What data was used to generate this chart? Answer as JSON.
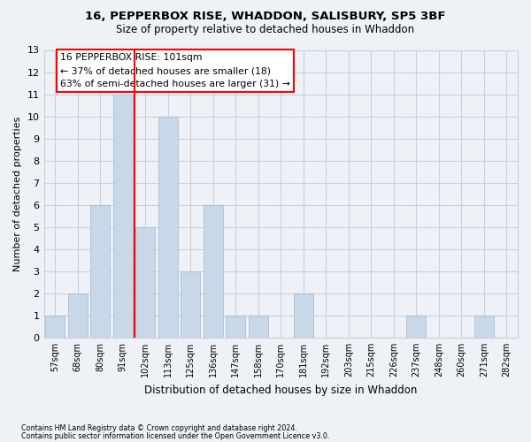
{
  "title_line1": "16, PEPPERBOX RISE, WHADDON, SALISBURY, SP5 3BF",
  "title_line2": "Size of property relative to detached houses in Whaddon",
  "xlabel": "Distribution of detached houses by size in Whaddon",
  "ylabel": "Number of detached properties",
  "footnote1": "Contains HM Land Registry data © Crown copyright and database right 2024.",
  "footnote2": "Contains public sector information licensed under the Open Government Licence v3.0.",
  "bins": [
    "57sqm",
    "68sqm",
    "80sqm",
    "91sqm",
    "102sqm",
    "113sqm",
    "125sqm",
    "136sqm",
    "147sqm",
    "158sqm",
    "170sqm",
    "181sqm",
    "192sqm",
    "203sqm",
    "215sqm",
    "226sqm",
    "237sqm",
    "248sqm",
    "260sqm",
    "271sqm",
    "282sqm"
  ],
  "values": [
    1,
    2,
    6,
    11,
    5,
    10,
    3,
    6,
    1,
    1,
    0,
    2,
    0,
    0,
    0,
    0,
    1,
    0,
    0,
    1,
    0
  ],
  "bar_color": "#c8d8e8",
  "bar_edge_color": "#a0b8d0",
  "vline_pos": 3.5,
  "vline_color": "red",
  "annotation_text": "16 PEPPERBOX RISE: 101sqm\n← 37% of detached houses are smaller (18)\n63% of semi-detached houses are larger (31) →",
  "annotation_box_color": "white",
  "annotation_box_edge_color": "red",
  "ylim": [
    0,
    13
  ],
  "yticks": [
    0,
    1,
    2,
    3,
    4,
    5,
    6,
    7,
    8,
    9,
    10,
    11,
    12,
    13
  ],
  "bg_color": "#eef2f6",
  "grid_color": "#c8d0da"
}
